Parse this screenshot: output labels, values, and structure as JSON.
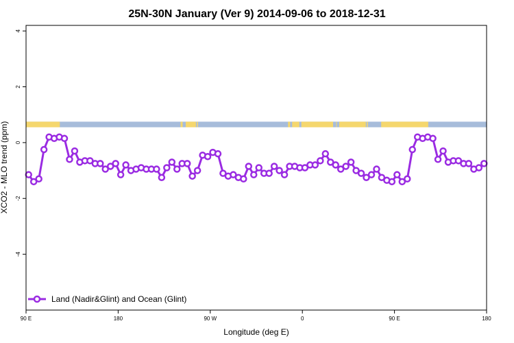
{
  "chart_data": {
    "type": "line",
    "title": "25N-30N January (Ver 9)   2014-09-06 to 2018-12-31",
    "xlabel": "Longitude (deg E)",
    "ylabel": "XCO2 - MLO trend (ppm)",
    "xlim": [
      90,
      540
    ],
    "ylim": [
      -6,
      4.2
    ],
    "x_ticks": [
      {
        "value": 90,
        "label": "90 E"
      },
      {
        "value": 180,
        "label": "180"
      },
      {
        "value": 270,
        "label": "90 W"
      },
      {
        "value": 360,
        "label": "0"
      },
      {
        "value": 450,
        "label": "90 E"
      },
      {
        "value": 540,
        "label": "180"
      }
    ],
    "y_ticks": [
      -4,
      -2,
      0,
      2,
      4
    ],
    "grid": false,
    "legend_position": "bottom-left",
    "land_ocean_strip": {
      "y_range": [
        0.55,
        0.75
      ],
      "ocean_color": "#a7bcda",
      "land_color": "#f5d76e",
      "land_segments": [
        [
          90,
          123
        ],
        [
          241,
          243
        ],
        [
          246,
          256
        ],
        [
          257,
          258
        ],
        [
          346,
          348
        ],
        [
          350,
          357
        ],
        [
          359,
          390
        ],
        [
          393,
          393
        ],
        [
          396,
          422
        ],
        [
          423,
          424
        ],
        [
          437,
          483
        ]
      ]
    },
    "series": [
      {
        "name": "Land (Nadir&Glint) and Ocean (Glint)",
        "color": "#9a2be2",
        "x": [
          92.5,
          97.5,
          102.5,
          107.5,
          112.5,
          117.5,
          122.5,
          127.5,
          132.5,
          137.5,
          142.5,
          147.5,
          152.5,
          157.5,
          162.5,
          167.5,
          172.5,
          177.5,
          182.5,
          187.5,
          192.5,
          197.5,
          202.5,
          207.5,
          212.5,
          217.5,
          222.5,
          227.5,
          232.5,
          237.5,
          242.5,
          247.5,
          252.5,
          257.5,
          262.5,
          267.5,
          272.5,
          277.5,
          282.5,
          287.5,
          292.5,
          297.5,
          302.5,
          307.5,
          312.5,
          317.5,
          322.5,
          327.5,
          332.5,
          337.5,
          342.5,
          347.5,
          352.5,
          357.5,
          362.5,
          367.5,
          372.5,
          377.5,
          382.5,
          387.5,
          392.5,
          397.5,
          402.5,
          407.5,
          412.5,
          417.5,
          422.5,
          427.5,
          432.5,
          437.5,
          442.5,
          447.5,
          452.5,
          457.5,
          462.5,
          467.5,
          472.5,
          477.5,
          482.5,
          487.5,
          492.5,
          497.5,
          502.5,
          507.5,
          512.5,
          517.5,
          522.5,
          527.5,
          532.5,
          537.5
        ],
        "values": [
          -1.15,
          -1.4,
          -1.3,
          -0.25,
          0.2,
          0.15,
          0.2,
          0.15,
          -0.6,
          -0.3,
          -0.7,
          -0.65,
          -0.65,
          -0.75,
          -0.75,
          -0.95,
          -0.85,
          -0.75,
          -1.15,
          -0.8,
          -1.0,
          -0.95,
          -0.9,
          -0.95,
          -0.95,
          -0.95,
          -1.25,
          -0.9,
          -0.7,
          -0.95,
          -0.75,
          -0.75,
          -1.2,
          -1.0,
          -0.45,
          -0.5,
          -0.35,
          -0.4,
          -1.1,
          -1.2,
          -1.15,
          -1.25,
          -1.3,
          -0.85,
          -1.15,
          -0.9,
          -1.1,
          -1.1,
          -0.85,
          -1.0,
          -1.15,
          -0.85,
          -0.85,
          -0.9,
          -0.9,
          -0.8,
          -0.8,
          -0.65,
          -0.4,
          -0.7,
          -0.8,
          -0.95,
          -0.85,
          -0.7,
          -1.0,
          -1.1,
          -1.25,
          -1.15,
          -0.95,
          -1.25,
          -1.35,
          -1.4,
          -1.15,
          -1.4,
          -1.3,
          -0.25,
          0.2,
          0.15,
          0.2,
          0.15,
          -0.6,
          -0.3,
          -0.7,
          -0.65,
          -0.65,
          -0.75,
          -0.75,
          -0.95,
          -0.9,
          -0.75
        ]
      }
    ]
  }
}
